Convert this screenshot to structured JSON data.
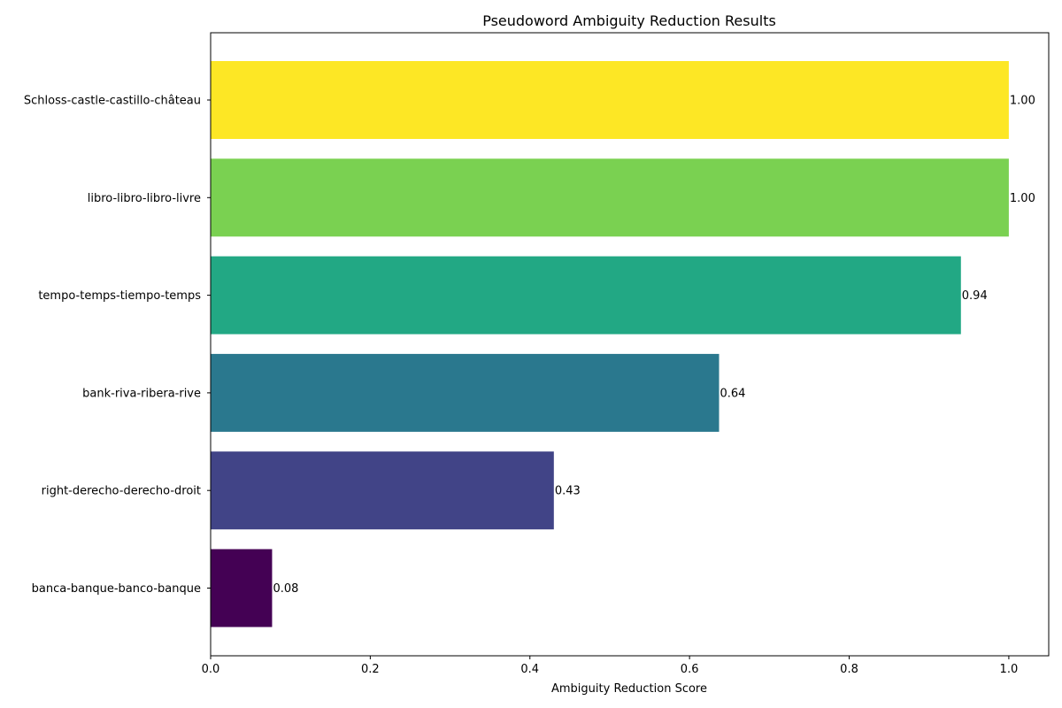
{
  "chart_data": {
    "type": "bar",
    "orientation": "horizontal",
    "title": "Pseudoword Ambiguity Reduction Results",
    "xlabel": "Ambiguity Reduction Score",
    "ylabel": "",
    "xlim": [
      0,
      1.05
    ],
    "xticks": [
      0.0,
      0.2,
      0.4,
      0.6,
      0.8,
      1.0
    ],
    "xtick_labels": [
      "0.0",
      "0.2",
      "0.4",
      "0.6",
      "0.8",
      "1.0"
    ],
    "grid": false,
    "categories": [
      "Schloss-castle-castillo-château",
      "libro-libro-libro-livre",
      "tempo-temps-tiempo-temps",
      "bank-riva-ribera-rive",
      "right-derecho-derecho-droit",
      "banca-banque-banco-banque"
    ],
    "values": [
      1.0,
      1.0,
      0.94,
      0.637,
      0.43,
      0.077
    ],
    "value_labels": [
      "1.00",
      "1.00",
      "0.94",
      "0.64",
      "0.43",
      "0.08"
    ],
    "colors": [
      "#fde725",
      "#7ad151",
      "#22a884",
      "#2a788e",
      "#414487",
      "#440154"
    ]
  }
}
